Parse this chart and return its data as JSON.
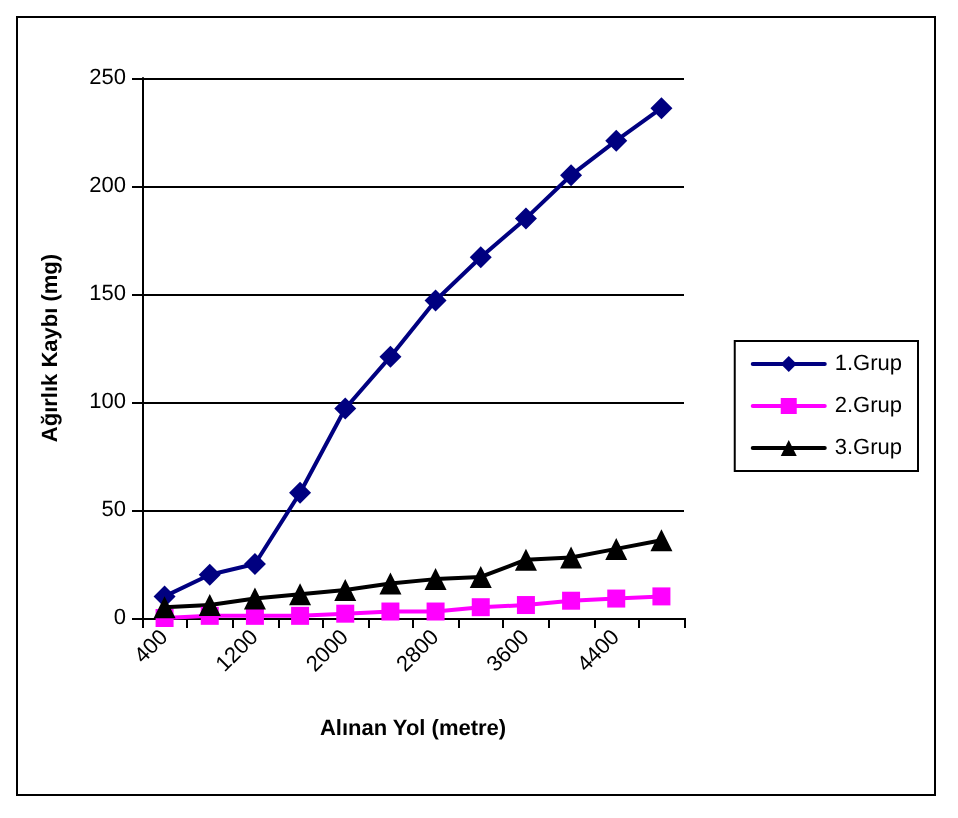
{
  "chart_data": {
    "type": "line",
    "xlabel": "Alınan Yol (metre)",
    "ylabel": "Ağırlık Kaybı (mg)",
    "categories": [
      "400",
      null,
      "1200",
      null,
      "2000",
      null,
      "2800",
      null,
      "3600",
      null,
      "4400",
      null
    ],
    "series": [
      {
        "name": "1.Grup",
        "color": "#000080",
        "marker": "diamond",
        "values": [
          10,
          20,
          25,
          58,
          97,
          121,
          147,
          167,
          185,
          205,
          221,
          236
        ]
      },
      {
        "name": "2.Grup",
        "color": "#ff00ff",
        "marker": "square",
        "values": [
          0,
          1,
          1,
          1,
          2,
          3,
          3,
          5,
          6,
          8,
          9,
          10
        ]
      },
      {
        "name": "3.Grup",
        "color": "#000000",
        "marker": "triangle",
        "values": [
          5,
          6,
          9,
          11,
          13,
          16,
          18,
          19,
          27,
          28,
          32,
          36
        ]
      }
    ],
    "ylim": [
      0,
      250
    ],
    "yticks": [
      0,
      50,
      100,
      150,
      200,
      250
    ],
    "grid": "y",
    "legend": "right",
    "line_style": "solid"
  }
}
